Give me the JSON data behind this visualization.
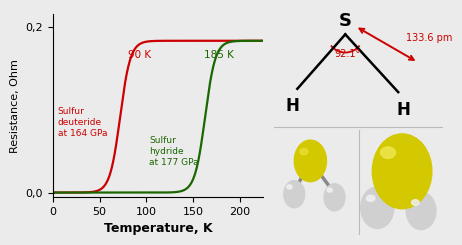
{
  "xlabel": "Temperature, K",
  "ylabel": "Resistance, Ohm",
  "xlim": [
    0,
    225
  ],
  "ylim": [
    -0.005,
    0.215
  ],
  "ytick_labels": [
    "0,0",
    "0,2"
  ],
  "ytick_vals": [
    0.0,
    0.2
  ],
  "xticks": [
    0,
    50,
    100,
    150,
    200
  ],
  "red_label": "Sulfur\ndeuteride\nat 164 GPa",
  "green_label": "Sulfur\nhydride\nat 177 GPa",
  "red_tc": 72,
  "green_tc": 163,
  "red_annotation": "90 K",
  "green_annotation": "185 K",
  "red_color": "#cc0000",
  "green_color": "#1a6600",
  "bg_color": "#ebebeb",
  "plot_bg": "#ebebeb",
  "s_label": "S",
  "h_label": "H",
  "angle_label": "92.1°",
  "bond_label": "133.6 pm",
  "arrow_color": "#cc0000",
  "yellow_color": "#d4c800",
  "yellow_light": "#e8dc30",
  "gray_ball": "#d0d0d0",
  "white_ball": "#f0f0f0"
}
